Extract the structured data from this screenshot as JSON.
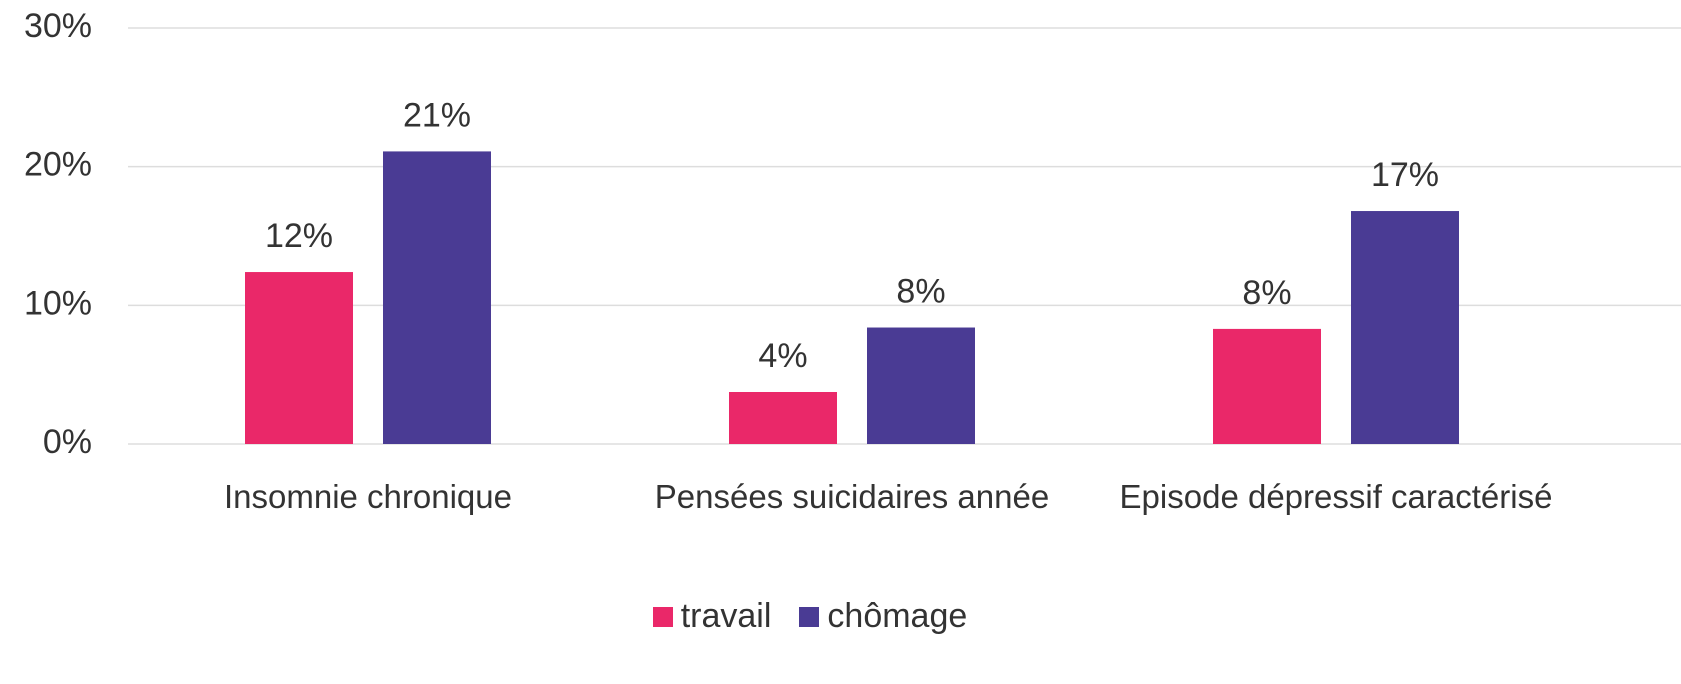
{
  "chart_data": {
    "type": "bar",
    "categories": [
      "Insomnie chronique",
      "Pensées suicidaires année",
      "Episode dépressif caractérisé"
    ],
    "series": [
      {
        "name": "travail",
        "color": "#ea2869",
        "values": [
          12.4,
          3.75,
          8.3
        ],
        "value_labels": [
          "12%",
          "4%",
          "8%"
        ]
      },
      {
        "name": "chômage",
        "color": "#4a3b94",
        "values": [
          21.1,
          8.4,
          16.8
        ],
        "value_labels": [
          "21%",
          "8%",
          "17%"
        ]
      }
    ],
    "ylim": [
      0,
      30
    ],
    "yticks": [
      {
        "value": 0,
        "label": "0%"
      },
      {
        "value": 10,
        "label": "10%"
      },
      {
        "value": 20,
        "label": "20%"
      },
      {
        "value": 30,
        "label": "30%"
      }
    ],
    "grid": true,
    "legend": "bottom"
  }
}
